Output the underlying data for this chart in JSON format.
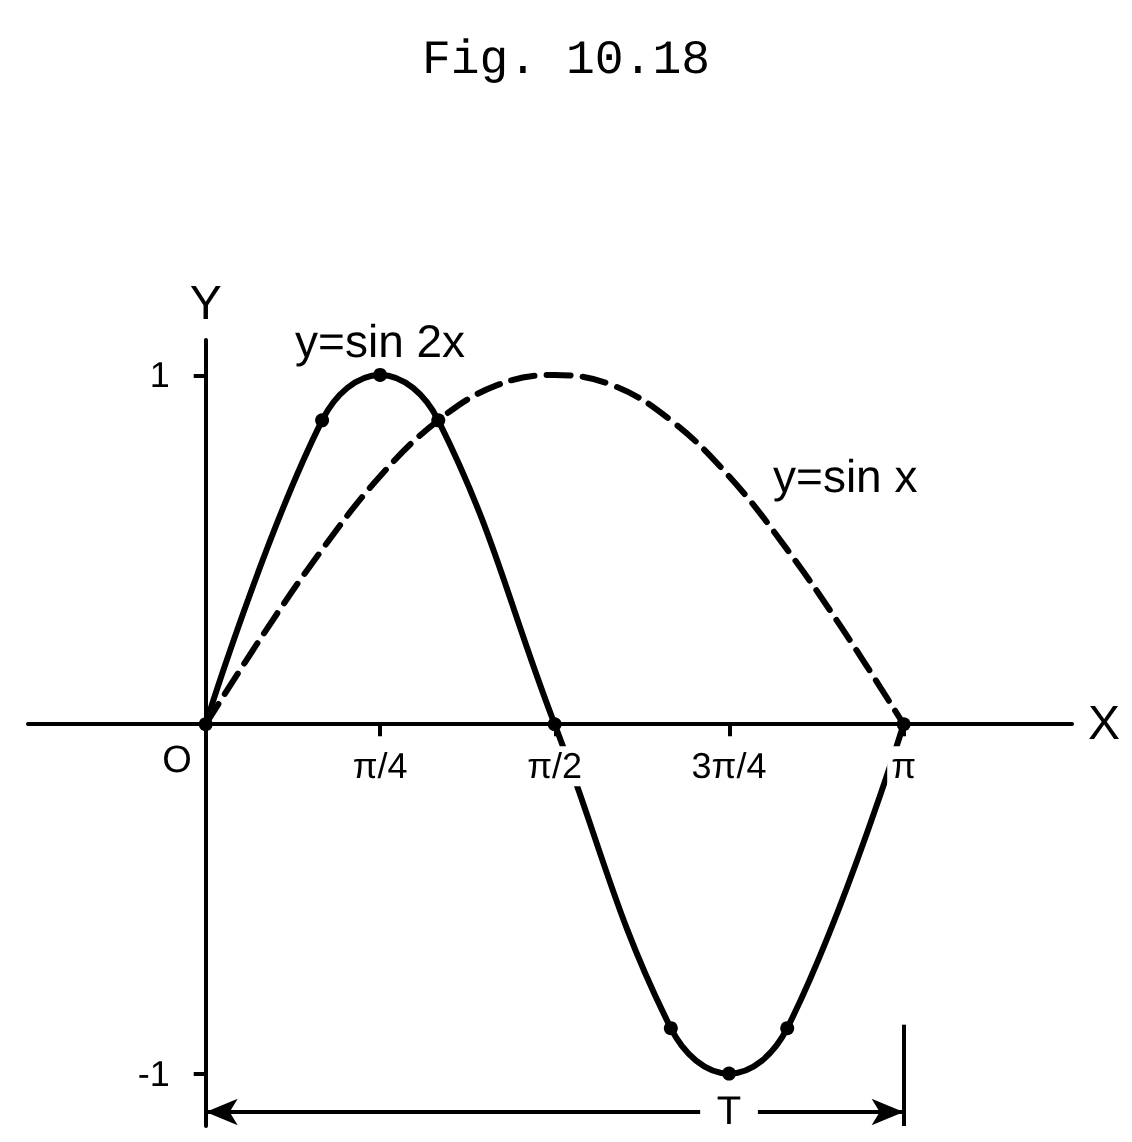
{
  "chart_data": {
    "type": "line",
    "title": "Fig. 10.18",
    "xlabel": "X",
    "ylabel": "Y",
    "xlim": [
      -0.8,
      3.9
    ],
    "ylim": [
      -1.15,
      1.1
    ],
    "xticks": [
      {
        "value": 0.785,
        "label": "π/4"
      },
      {
        "value": 1.571,
        "label": "π/2"
      },
      {
        "value": 2.356,
        "label": "3π/4"
      },
      {
        "value": 3.142,
        "label": "π"
      }
    ],
    "yticks": [
      1,
      -1
    ],
    "series": [
      {
        "name": "y=sin 2x",
        "color": "#000000",
        "marker": "circle",
        "line_style": "solid",
        "x": [
          0,
          0.524,
          0.785,
          1.047,
          1.571,
          2.094,
          2.356,
          2.618,
          3.142
        ],
        "values": [
          0,
          0.87,
          1,
          0.87,
          0,
          -0.87,
          -1,
          -0.87,
          0
        ]
      },
      {
        "name": "y=sin x",
        "color": "#000000",
        "marker": "none",
        "line_style": "dashed",
        "x": [
          0,
          0.262,
          0.524,
          0.785,
          1.047,
          1.309,
          1.571,
          1.833,
          2.094,
          2.356,
          2.618,
          2.88,
          3.142
        ],
        "values": [
          0,
          0.26,
          0.5,
          0.71,
          0.87,
          0.97,
          1,
          0.97,
          0.87,
          0.71,
          0.5,
          0.26,
          0
        ]
      }
    ],
    "annotations": [
      {
        "text": "O",
        "x": 0,
        "y": 0
      },
      "T"
    ]
  }
}
